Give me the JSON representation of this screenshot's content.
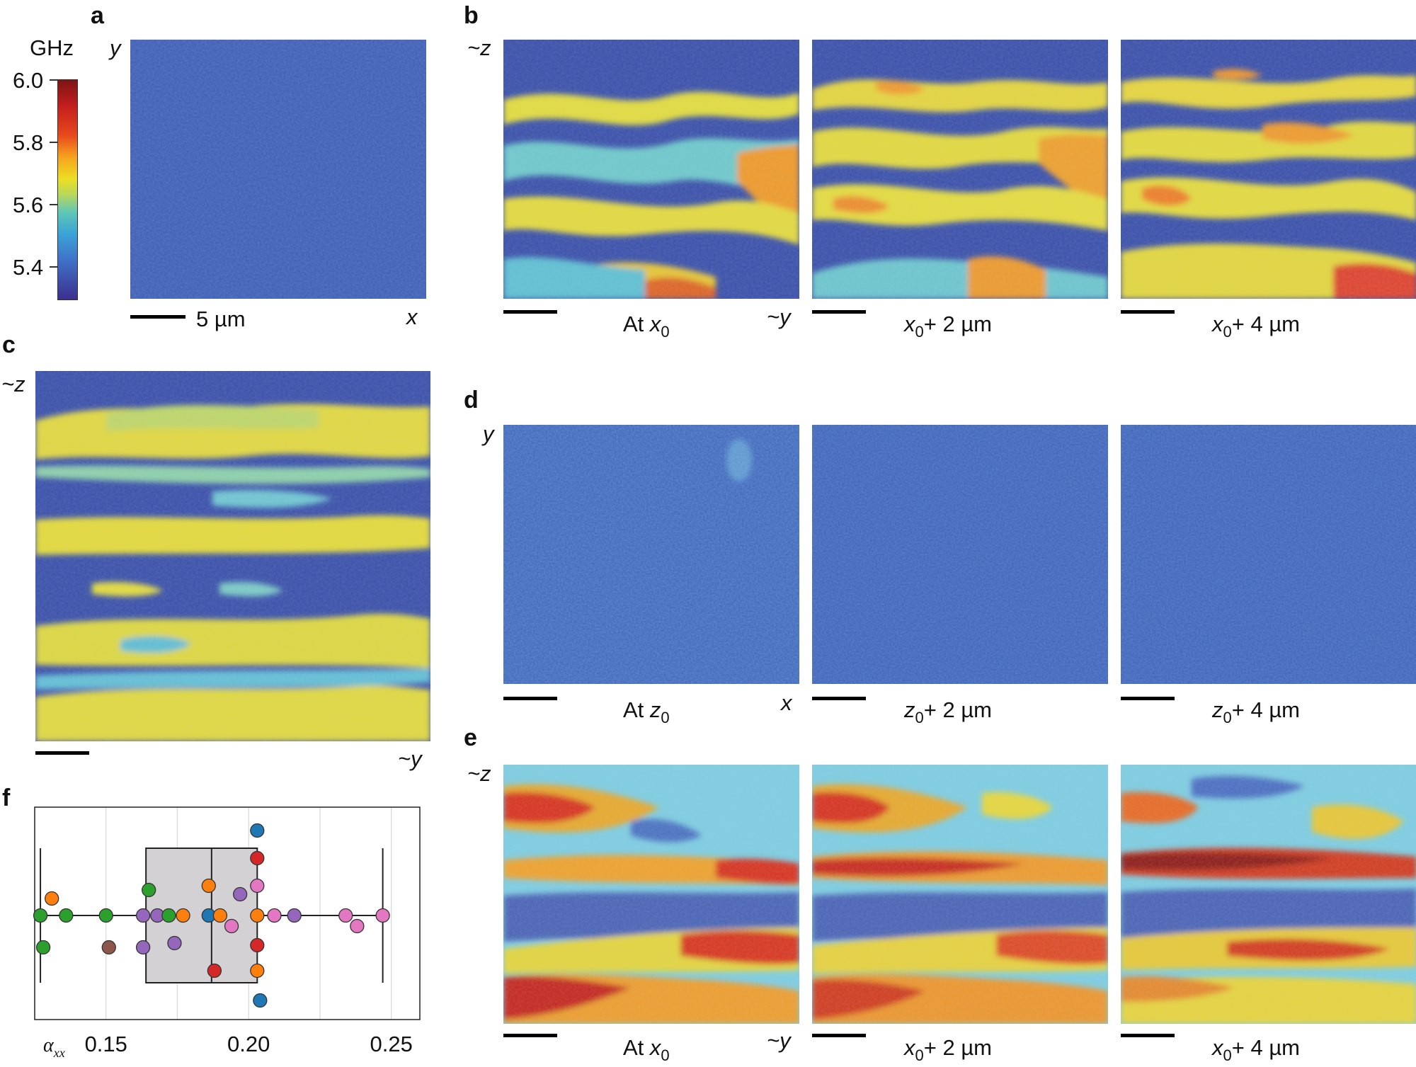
{
  "panels": {
    "a": "a",
    "b": "b",
    "c": "c",
    "d": "d",
    "e": "e",
    "f": "f"
  },
  "colorbar": {
    "unit": "GHz",
    "ticks": [
      "6.0",
      "5.8",
      "5.6",
      "5.4"
    ]
  },
  "axes": {
    "y": "y",
    "x": "x",
    "z_approx": "~z",
    "y_approx": "~y"
  },
  "scale_label": "5 µm",
  "captions_x": [
    {
      "pre": "At ",
      "var": "x",
      "sub": "0",
      "post": ""
    },
    {
      "pre": "",
      "var": "x",
      "sub": "0",
      "post": "+ 2 µm"
    },
    {
      "pre": "",
      "var": "x",
      "sub": "0",
      "post": "+ 4 µm"
    }
  ],
  "captions_z": [
    {
      "pre": "At ",
      "var": "z",
      "sub": "0",
      "post": ""
    },
    {
      "pre": "",
      "var": "z",
      "sub": "0",
      "post": "+ 2 µm"
    },
    {
      "pre": "",
      "var": "z",
      "sub": "0",
      "post": "+ 4 µm"
    }
  ],
  "colors": {
    "deep_blue": "#3b4fa8",
    "cyan": "#6cc6d8",
    "yellow": "#e8dc3a",
    "orange": "#f3a027",
    "red": "#d9321c"
  },
  "chart_data": {
    "type": "scatter",
    "xlabel_var": "α",
    "xlabel_sub": "xx",
    "xticks": [
      "0.15",
      "0.20",
      "0.25"
    ],
    "xlim": [
      0.125,
      0.26
    ],
    "grid": true,
    "box": {
      "whisker_low": 0.127,
      "q1": 0.164,
      "median": 0.187,
      "q3": 0.203,
      "whisker_high": 0.247
    },
    "points": [
      {
        "x": 0.127,
        "row": 0,
        "color": "#2ca02c"
      },
      {
        "x": 0.128,
        "row": -1.5,
        "color": "#2ca02c"
      },
      {
        "x": 0.131,
        "row": 0.8,
        "color": "#ff7f0e"
      },
      {
        "x": 0.136,
        "row": 0,
        "color": "#2ca02c"
      },
      {
        "x": 0.15,
        "row": 0,
        "color": "#2ca02c"
      },
      {
        "x": 0.151,
        "row": -1.5,
        "color": "#8c564b"
      },
      {
        "x": 0.163,
        "row": 0,
        "color": "#9467bd"
      },
      {
        "x": 0.163,
        "row": -1.5,
        "color": "#9467bd"
      },
      {
        "x": 0.165,
        "row": 1.2,
        "color": "#2ca02c"
      },
      {
        "x": 0.168,
        "row": 0,
        "color": "#9467bd"
      },
      {
        "x": 0.172,
        "row": 0,
        "color": "#2ca02c"
      },
      {
        "x": 0.174,
        "row": -1.3,
        "color": "#9467bd"
      },
      {
        "x": 0.177,
        "row": 0,
        "color": "#ff7f0e"
      },
      {
        "x": 0.186,
        "row": 1.4,
        "color": "#ff7f0e"
      },
      {
        "x": 0.186,
        "row": 0,
        "color": "#1f77b4"
      },
      {
        "x": 0.188,
        "row": -2.6,
        "color": "#d62728"
      },
      {
        "x": 0.19,
        "row": 0,
        "color": "#ff7f0e"
      },
      {
        "x": 0.194,
        "row": -0.5,
        "color": "#e377c2"
      },
      {
        "x": 0.197,
        "row": 1.0,
        "color": "#9467bd"
      },
      {
        "x": 0.203,
        "row": 4.0,
        "color": "#1f77b4"
      },
      {
        "x": 0.203,
        "row": 2.7,
        "color": "#d62728"
      },
      {
        "x": 0.203,
        "row": 1.4,
        "color": "#e377c2"
      },
      {
        "x": 0.203,
        "row": 0,
        "color": "#ff7f0e"
      },
      {
        "x": 0.203,
        "row": -1.4,
        "color": "#d62728"
      },
      {
        "x": 0.203,
        "row": -2.6,
        "color": "#ff7f0e"
      },
      {
        "x": 0.204,
        "row": -4.0,
        "color": "#1f77b4"
      },
      {
        "x": 0.209,
        "row": 0,
        "color": "#e377c2"
      },
      {
        "x": 0.216,
        "row": 0,
        "color": "#9467bd"
      },
      {
        "x": 0.234,
        "row": 0,
        "color": "#e377c2"
      },
      {
        "x": 0.238,
        "row": -0.5,
        "color": "#e377c2"
      },
      {
        "x": 0.247,
        "row": 0,
        "color": "#e377c2"
      }
    ]
  }
}
